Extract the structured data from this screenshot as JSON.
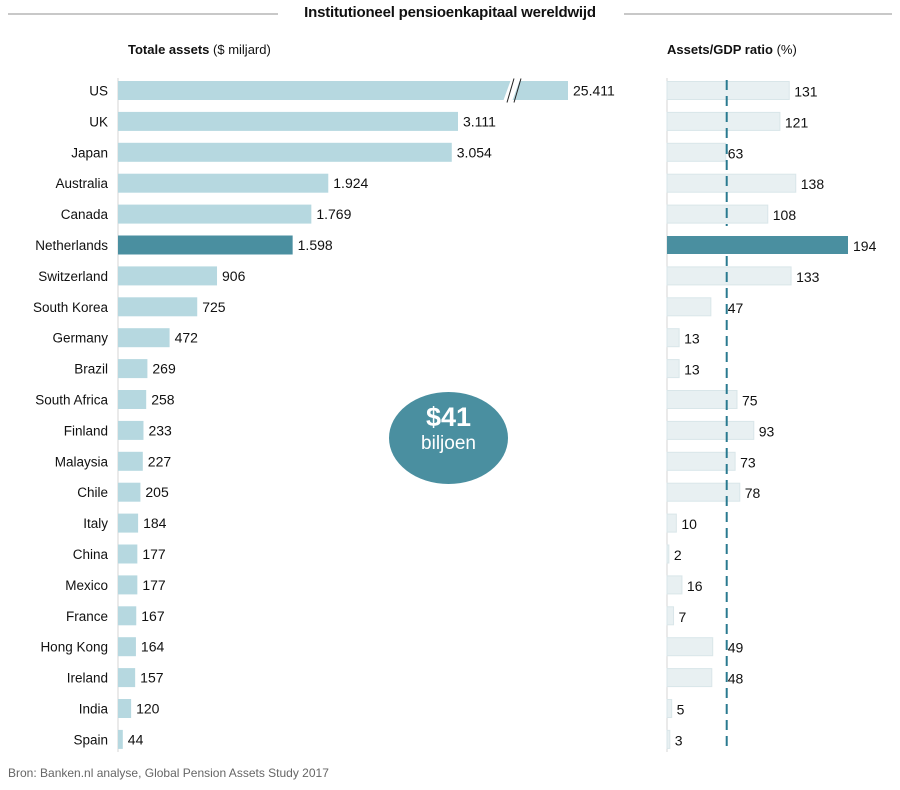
{
  "title": "Institutioneel pensioenkapitaal wereldwijd",
  "source": "Bron: Banken.nl analyse, Global Pension Assets Study 2017",
  "bubble": {
    "value": "$41",
    "unit": "biljoen"
  },
  "colors": {
    "left_bar": "#b6d8e0",
    "right_bar": "#e8f0f2",
    "highlight": "#4a8fa0",
    "dashed_line": "#2a7a90"
  },
  "chart_data": [
    {
      "type": "bar",
      "orientation": "horizontal",
      "title_bold": "Totale assets",
      "title_rest": " ($ miljard)",
      "categories": [
        "US",
        "UK",
        "Japan",
        "Australia",
        "Canada",
        "Netherlands",
        "Switzerland",
        "South Korea",
        "Germany",
        "Brazil",
        "South Africa",
        "Finland",
        "Malaysia",
        "Chile",
        "Italy",
        "China",
        "Mexico",
        "France",
        "Hong Kong",
        "Ireland",
        "India",
        "Spain"
      ],
      "values": [
        25411,
        3111,
        3054,
        1924,
        1769,
        1598,
        906,
        725,
        472,
        269,
        258,
        233,
        227,
        205,
        184,
        177,
        177,
        167,
        164,
        157,
        120,
        44
      ],
      "labels": [
        "25.411",
        "3.111",
        "3.054",
        "1.924",
        "1.769",
        "1.598",
        "906",
        "725",
        "472",
        "269",
        "258",
        "233",
        "227",
        "205",
        "184",
        "177",
        "177",
        "167",
        "164",
        "157",
        "120",
        "44"
      ],
      "highlight": "Netherlands",
      "axis_break": "US",
      "grid": false
    },
    {
      "type": "bar",
      "orientation": "horizontal",
      "title_bold": "Assets/GDP ratio",
      "title_rest": " (%)",
      "categories": [
        "US",
        "UK",
        "Japan",
        "Australia",
        "Canada",
        "Netherlands",
        "Switzerland",
        "South Korea",
        "Germany",
        "Brazil",
        "South Africa",
        "Finland",
        "Malaysia",
        "Chile",
        "Italy",
        "China",
        "Mexico",
        "France",
        "Hong Kong",
        "Ireland",
        "India",
        "Spain"
      ],
      "values": [
        131,
        121,
        63,
        138,
        108,
        194,
        133,
        47,
        13,
        13,
        75,
        93,
        73,
        78,
        10,
        2,
        16,
        7,
        49,
        48,
        5,
        3
      ],
      "highlight": "Netherlands",
      "reference_line": 64,
      "grid": false
    }
  ]
}
